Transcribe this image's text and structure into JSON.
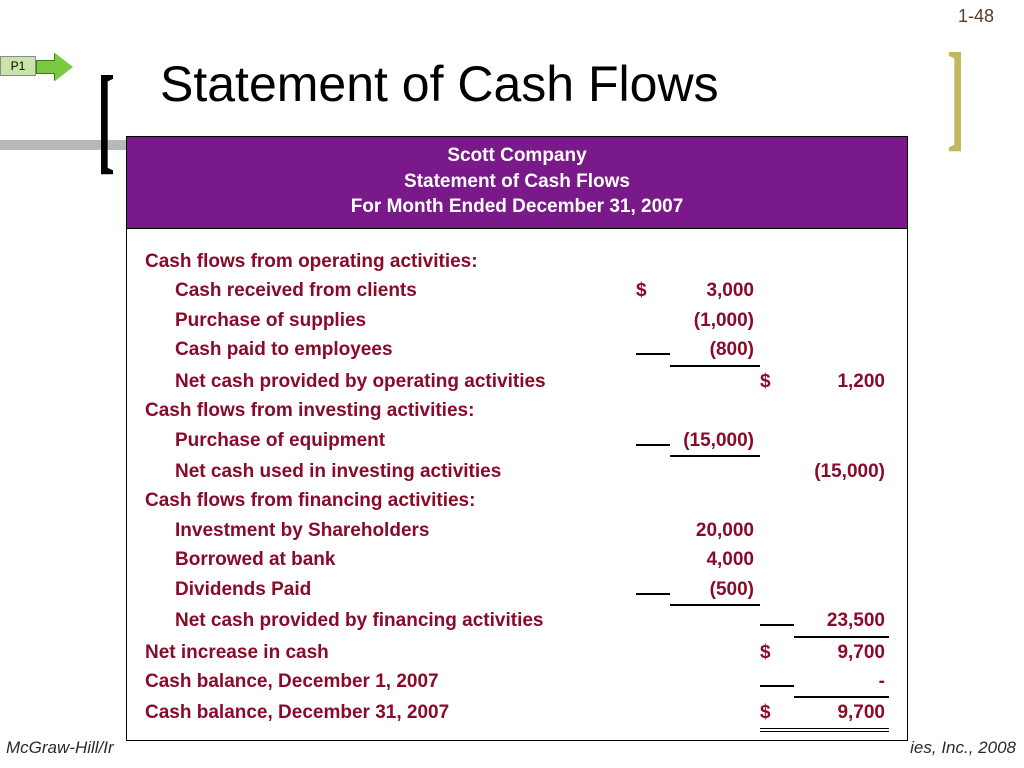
{
  "page_number": "1-48",
  "nav_tag": "P1",
  "slide_title": "Statement of Cash Flows",
  "header": {
    "company": "Scott Company",
    "statement": "Statement of Cash Flows",
    "period": "For Month Ended December 31, 2007"
  },
  "sections": {
    "operating": {
      "heading": "Cash flows from operating activities:",
      "items": [
        {
          "label": "Cash received from clients",
          "sym1": "$",
          "val1": "3,000"
        },
        {
          "label": "Purchase of supplies",
          "sym1": "",
          "val1": "(1,000)"
        },
        {
          "label": "Cash paid to employees",
          "sym1": "",
          "val1": "(800)",
          "underline1": true
        }
      ],
      "subtotal": {
        "label": "Net cash provided by operating activities",
        "sym2": "$",
        "val2": "1,200"
      }
    },
    "investing": {
      "heading": "Cash flows from investing activities:",
      "items": [
        {
          "label": "Purchase of equipment",
          "sym1": "",
          "val1": "(15,000)",
          "underline1": true
        }
      ],
      "subtotal": {
        "label": "Net cash used in investing activities",
        "sym2": "",
        "val2": "(15,000)"
      }
    },
    "financing": {
      "heading": "Cash flows from financing activities:",
      "items": [
        {
          "label": "Investment by Shareholders",
          "sym1": "",
          "val1": "20,000"
        },
        {
          "label": "Borrowed at bank",
          "sym1": "",
          "val1": "4,000"
        },
        {
          "label": "Dividends Paid",
          "sym1": "",
          "val1": "(500)",
          "underline1": true
        }
      ],
      "subtotal": {
        "label": "Net cash provided by financing activities",
        "sym2": "",
        "val2": "23,500",
        "underline2": true
      }
    },
    "net_increase": {
      "label": "Net increase in cash",
      "sym2": "$",
      "val2": "9,700"
    },
    "balance_begin": {
      "label": "Cash balance, December 1, 2007",
      "sym2": "",
      "val2": "-",
      "underline2": true
    },
    "balance_end": {
      "label": "Cash balance, December 31, 2007",
      "sym2": "$",
      "val2": "9,700",
      "double2": true
    }
  },
  "footer": {
    "left": "McGraw-Hill/Ir",
    "right": "ies, Inc., 2008"
  },
  "colors": {
    "header_bg": "#7a1a8a",
    "text_maroon": "#8a0a2a",
    "bracket_gold": "#c0b860",
    "arrow_green": "#7ac943"
  }
}
